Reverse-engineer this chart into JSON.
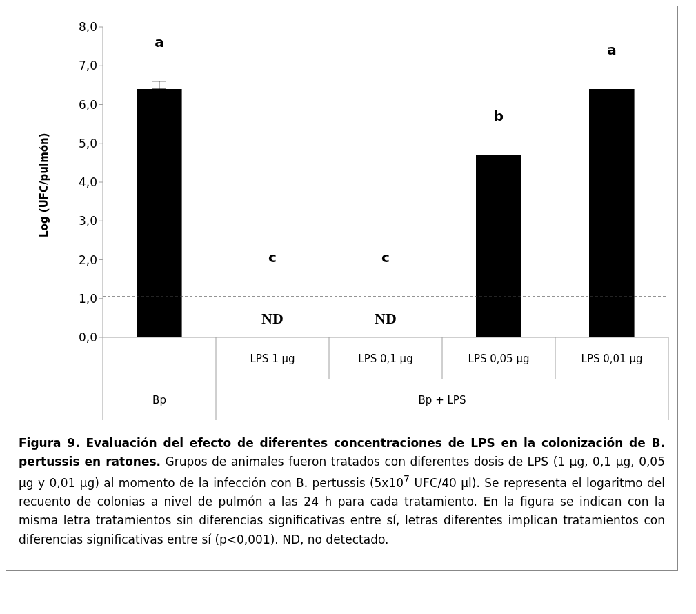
{
  "chart_data": {
    "type": "bar",
    "title": "Figura 9. Evaluación del efecto de diferentes concentraciones de LPS en la colonización de B. pertussis en ratones.",
    "ylabel": "Log (UFC/pulmón)",
    "categories": [
      null,
      "LPS 1 µg",
      "LPS 0,1 µg",
      "LPS 0,05 µg",
      "LPS 0,01 µg"
    ],
    "values": [
      6.4,
      null,
      null,
      4.7,
      6.4
    ],
    "color": "#000000",
    "errors": [
      [
        6.4,
        6.6
      ],
      null,
      null,
      null,
      null
    ],
    "ylim": [
      0,
      8
    ],
    "yticks": [
      {
        "value": 0,
        "label": "0,0"
      },
      {
        "value": 1,
        "label": "1,0"
      },
      {
        "value": 2,
        "label": "2,0"
      },
      {
        "value": 3,
        "label": "3,0"
      },
      {
        "value": 4,
        "label": "4,0"
      },
      {
        "value": 5,
        "label": "5,0"
      },
      {
        "value": 6,
        "label": "6,0"
      },
      {
        "value": 7,
        "label": "7,0"
      },
      {
        "value": 8,
        "label": "8,0"
      }
    ],
    "grid": false,
    "legend": false,
    "ref_lines": [
      {
        "axis": "y",
        "value": 1.05,
        "color": "#404040",
        "line_style": "dashed"
      }
    ],
    "annotations": [
      "a",
      "c",
      "c",
      "b",
      "a",
      "ND",
      "ND",
      "Bp",
      "Bp + LPS",
      "Grupos de animales fueron tratados con diferentes dosis de LPS (1 µg, 0,1 µg, 0,05 µg y 0,01 µg) al momento de la infección con B. pertussis (5x10$^{7}$ UFC/40 µl). Se representa el logaritmo del recuento de colonias a nivel de pulmón a las 24 h para cada tratamiento. En la figura se indican con la misma letra tratamientos sin diferencias significativas entre sí, letras diferentes implican tratamientos con diferencias significativas entre sí (p<0,001). ND, no detectado."
    ]
  }
}
